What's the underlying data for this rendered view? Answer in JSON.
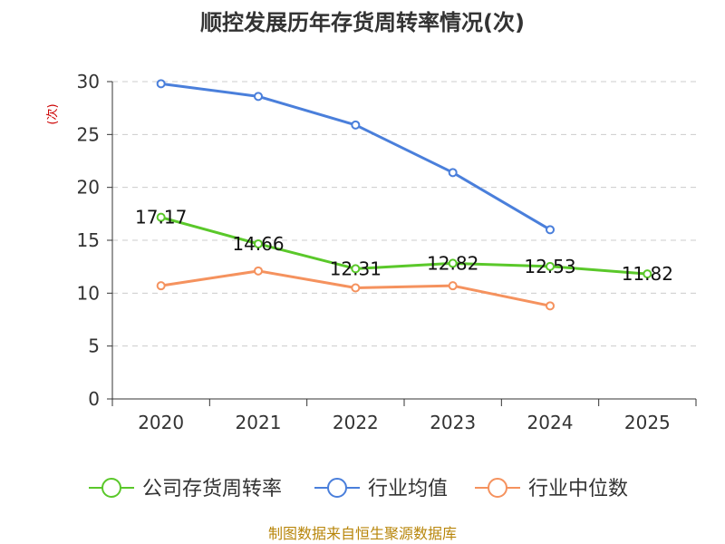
{
  "chart_data": {
    "type": "line",
    "title": "顺控发展历年存货周转率情况(次)",
    "ylabel": "(次)",
    "categories": [
      "2020",
      "2021",
      "2022",
      "2023",
      "2024",
      "2025"
    ],
    "yticks": [
      "0",
      "5",
      "10",
      "15",
      "20",
      "25",
      "30"
    ],
    "ylim": [
      0,
      30
    ],
    "grid": true,
    "legend_position": "bottom",
    "series": [
      {
        "name": "公司存货周转率",
        "color": "#5ac82a",
        "values": [
          17.17,
          14.66,
          12.31,
          12.82,
          12.53,
          11.82
        ],
        "labels": [
          "17.17",
          "14.66",
          "12.31",
          "12.82",
          "12.53",
          "11.82"
        ]
      },
      {
        "name": "行业均值",
        "color": "#4a7fdb",
        "values": [
          29.8,
          28.6,
          25.9,
          21.4,
          16.0,
          null
        ]
      },
      {
        "name": "行业中位数",
        "color": "#f5925e",
        "values": [
          10.7,
          12.1,
          10.5,
          10.7,
          8.8,
          null
        ]
      }
    ]
  },
  "footer": {
    "source": "制图数据来自恒生聚源数据库"
  }
}
